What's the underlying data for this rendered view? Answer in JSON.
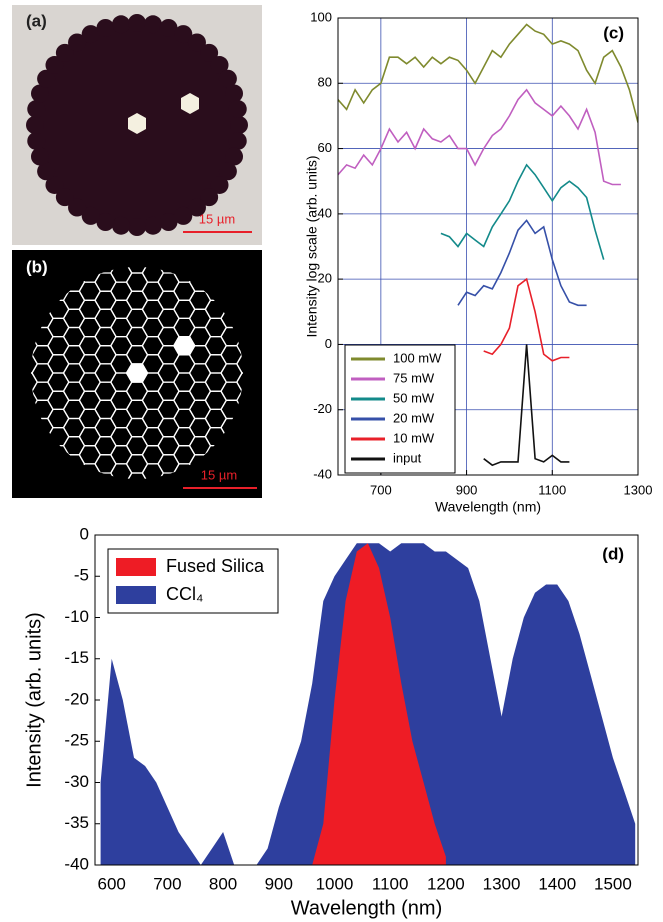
{
  "panels": [
    {
      "label": "(a)",
      "scale_bar": "15 µm"
    },
    {
      "label": "(b)",
      "scale_bar": "15 µm"
    }
  ],
  "chart_data": [
    {
      "type": "line",
      "label": "(c)",
      "xlabel": "Wavelength (nm)",
      "ylabel": "Intensity log scale (arb. units)",
      "xlim": [
        600,
        1300
      ],
      "xticks": [
        700,
        900,
        1100,
        1300
      ],
      "ylim": [
        -40,
        100
      ],
      "yticks": [
        -40,
        -20,
        0,
        20,
        40,
        60,
        80,
        100
      ],
      "grid": true,
      "legend": "lower left",
      "x": [
        600,
        620,
        640,
        660,
        680,
        700,
        720,
        740,
        760,
        780,
        800,
        820,
        840,
        860,
        880,
        900,
        920,
        940,
        960,
        980,
        1000,
        1020,
        1040,
        1060,
        1080,
        1100,
        1120,
        1140,
        1160,
        1180,
        1200,
        1220,
        1240,
        1260,
        1280,
        1300
      ],
      "series": [
        {
          "name": "100 mW",
          "color": "#7f8a2e",
          "values": [
            75,
            72,
            78,
            74,
            78,
            80,
            88,
            88,
            86,
            88,
            85,
            88,
            86,
            88,
            87,
            84,
            80,
            85,
            90,
            88,
            92,
            95,
            98,
            96,
            95,
            92,
            93,
            92,
            90,
            84,
            80,
            88,
            90,
            85,
            78,
            68
          ]
        },
        {
          "name": "75 mW",
          "color": "#c05fc0",
          "values": [
            52,
            55,
            54,
            58,
            55,
            60,
            66,
            62,
            65,
            60,
            66,
            63,
            62,
            64,
            60,
            60,
            55,
            60,
            64,
            66,
            70,
            75,
            78,
            74,
            72,
            70,
            73,
            70,
            66,
            72,
            65,
            50,
            49,
            49,
            null,
            null
          ]
        },
        {
          "name": "50 mW",
          "color": "#138a8a",
          "values": [
            null,
            null,
            null,
            null,
            null,
            null,
            null,
            null,
            null,
            null,
            null,
            null,
            34,
            33,
            30,
            34,
            32,
            30,
            36,
            40,
            44,
            50,
            55,
            52,
            48,
            44,
            48,
            50,
            48,
            45,
            35,
            26,
            null,
            null,
            null,
            null
          ]
        },
        {
          "name": "20 mW",
          "color": "#3650a8",
          "values": [
            null,
            null,
            null,
            null,
            null,
            null,
            null,
            null,
            null,
            null,
            null,
            null,
            null,
            null,
            12,
            16,
            15,
            18,
            17,
            22,
            28,
            35,
            38,
            34,
            36,
            26,
            18,
            13,
            12,
            12,
            null,
            null,
            null,
            null,
            null,
            null
          ]
        },
        {
          "name": "10 mW",
          "color": "#e8202a",
          "values": [
            null,
            null,
            null,
            null,
            null,
            null,
            null,
            null,
            null,
            null,
            null,
            null,
            null,
            null,
            null,
            null,
            null,
            -2,
            -3,
            0,
            5,
            18,
            20,
            10,
            -3,
            -5,
            -4,
            -4,
            null,
            null,
            null,
            null,
            null,
            null,
            null,
            null
          ]
        },
        {
          "name": "input",
          "color": "#111111",
          "values": [
            null,
            null,
            null,
            null,
            null,
            null,
            null,
            null,
            null,
            null,
            null,
            null,
            null,
            null,
            null,
            null,
            null,
            -35,
            -37,
            -36,
            -36,
            -36,
            0,
            -35,
            -36,
            -34,
            -36,
            -36,
            null,
            null,
            null,
            null,
            null,
            null,
            null,
            null
          ]
        }
      ]
    },
    {
      "type": "area",
      "label": "(d)",
      "xlabel": "Wavelength (nm)",
      "ylabel": "Intensity (arb. units)",
      "xlim": [
        570,
        1545
      ],
      "xticks": [
        600,
        700,
        800,
        900,
        1000,
        1100,
        1200,
        1300,
        1400,
        1500
      ],
      "ylim": [
        -40,
        0
      ],
      "yticks": [
        0,
        -5,
        -10,
        -15,
        -20,
        -25,
        -30,
        -35,
        -40
      ],
      "grid": false,
      "legend": "upper left",
      "x": [
        580,
        600,
        620,
        640,
        660,
        680,
        700,
        720,
        740,
        760,
        780,
        800,
        820,
        840,
        860,
        880,
        900,
        920,
        940,
        960,
        980,
        1000,
        1020,
        1040,
        1060,
        1080,
        1100,
        1120,
        1140,
        1160,
        1180,
        1200,
        1220,
        1240,
        1260,
        1280,
        1300,
        1320,
        1340,
        1360,
        1380,
        1400,
        1420,
        1440,
        1460,
        1480,
        1500,
        1520,
        1540
      ],
      "series": [
        {
          "name": "CCl₄",
          "color": "#2e3f9e",
          "values": [
            -30,
            -15,
            -20,
            -27,
            -28,
            -30,
            -33,
            -36,
            -38,
            -40,
            -38,
            -36,
            -40,
            -40,
            -40,
            -38,
            -33,
            -29,
            -25,
            -18,
            -8,
            -5,
            -3,
            -1,
            -1,
            -1,
            -2,
            -1,
            -1,
            -1,
            -2,
            -2,
            -3,
            -4,
            -8,
            -15,
            -22,
            -15,
            -10,
            -7,
            -6,
            -6,
            -8,
            -12,
            -17,
            -22,
            -27,
            -31,
            -35
          ]
        },
        {
          "name": "Fused Silica",
          "color": "#ee1c25",
          "values": [
            null,
            null,
            null,
            null,
            null,
            null,
            null,
            null,
            null,
            null,
            null,
            null,
            null,
            null,
            null,
            null,
            null,
            null,
            null,
            -40,
            -35,
            -20,
            -8,
            -2,
            -1,
            -4,
            -10,
            -18,
            -25,
            -30,
            -35,
            -39,
            null,
            null,
            null,
            null,
            null,
            null,
            null,
            null,
            null,
            null,
            null,
            null,
            null,
            null,
            null,
            null,
            null
          ]
        }
      ]
    }
  ]
}
